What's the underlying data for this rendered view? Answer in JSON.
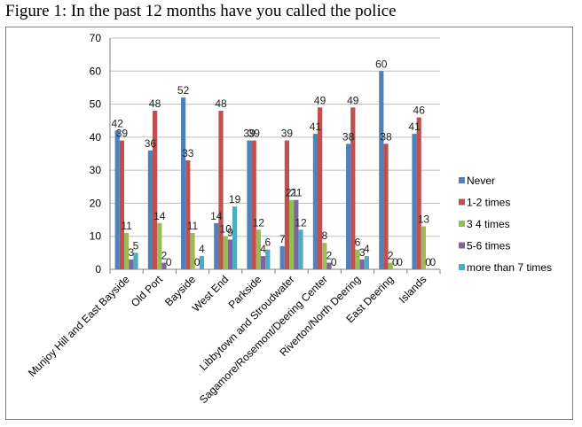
{
  "figure_title": "Figure 1: In the past 12 months have you called the police",
  "chart_data": {
    "type": "bar",
    "title": "",
    "xlabel": "",
    "ylabel": "",
    "ylim": [
      0,
      70
    ],
    "yticks": [
      0,
      10,
      20,
      30,
      40,
      50,
      60,
      70
    ],
    "grid": "horizontal",
    "legend_position": "right",
    "categories": [
      "Munjoy Hill and East Bayside",
      "Old Port",
      "Bayside",
      "West End",
      "Parkside",
      "Libbytown and Stroudwater",
      "Sagamore/Rosemont/Deering Center",
      "Riverton/North Deering",
      "East Deering",
      "Islands"
    ],
    "series": [
      {
        "name": "Never",
        "color": "#4f81bd",
        "values": [
          42,
          36,
          52,
          14,
          39,
          7,
          41,
          38,
          60,
          41
        ]
      },
      {
        "name": "1-2 times",
        "color": "#c0504d",
        "values": [
          39,
          48,
          33,
          48,
          39,
          39,
          49,
          49,
          38,
          46
        ]
      },
      {
        "name": "3 4 times",
        "color": "#9bbb59",
        "values": [
          11,
          14,
          11,
          10,
          12,
          21,
          8,
          6,
          2,
          13
        ]
      },
      {
        "name": "5-6 times",
        "color": "#8064a2",
        "values": [
          3,
          2,
          0,
          9,
          4,
          21,
          2,
          3,
          0,
          0
        ]
      },
      {
        "name": "more than 7 times",
        "color": "#4bacc6",
        "values": [
          5,
          0,
          4,
          19,
          6,
          12,
          0,
          4,
          0,
          0
        ]
      }
    ]
  }
}
